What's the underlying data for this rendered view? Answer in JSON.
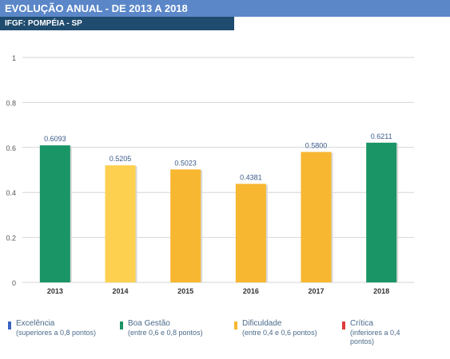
{
  "header": {
    "title": "EVOLUÇÃO ANUAL - DE 2013 A 2018",
    "subtitle": "IFGF: POMPÉIA - SP"
  },
  "chart_data": {
    "type": "bar",
    "categories": [
      "2013",
      "2014",
      "2015",
      "2016",
      "2017",
      "2018"
    ],
    "values": [
      0.6093,
      0.5205,
      0.5023,
      0.4381,
      0.58,
      0.6211
    ],
    "value_labels": [
      "0.6093",
      "0.5205",
      "0.5023",
      "0.4381",
      "0.5800",
      "0.6211"
    ],
    "bar_colors": [
      "#1a9566",
      "#fdd04f",
      "#f7b731",
      "#f7b731",
      "#f7b731",
      "#1a9566"
    ],
    "ylim": [
      0,
      1
    ],
    "yticks": [
      0,
      0.2,
      0.4,
      0.6,
      0.8,
      1
    ],
    "ytick_labels": [
      "0",
      "0.2",
      "0.4",
      "0.6",
      "0.8",
      "1"
    ],
    "grid": true,
    "legend_placement": "bottom"
  },
  "legend": [
    {
      "label": "Excelência",
      "desc": "(superiores a 0,8 pontos)",
      "color": "#3b63c4"
    },
    {
      "label": "Boa Gestão",
      "desc": "(entre 0,6 e 0,8 pontos)",
      "color": "#1a9566"
    },
    {
      "label": "Dificuldade",
      "desc": "(entre 0,4 e 0,6 pontos)",
      "color": "#f7b731"
    },
    {
      "label": "Crítica",
      "desc": "(inferiores a 0,4 pontos)",
      "color": "#e03a3a"
    }
  ]
}
